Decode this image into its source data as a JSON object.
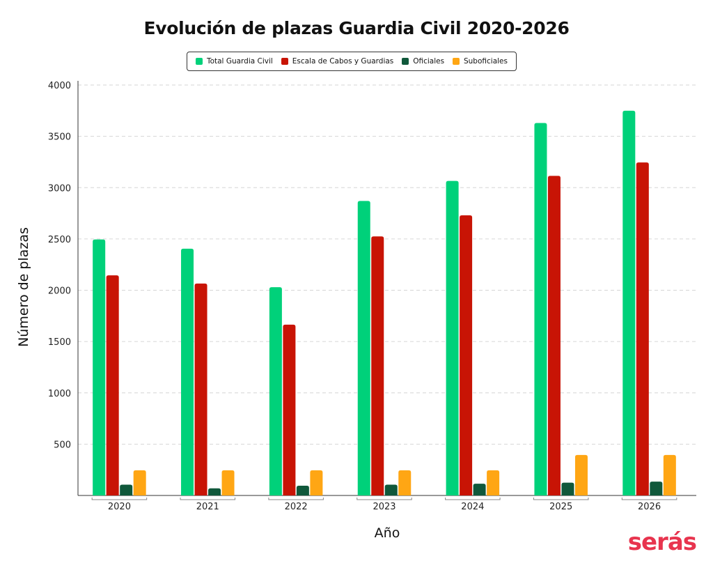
{
  "brand": "serás",
  "chart_data": {
    "type": "bar",
    "title": "Evolución de plazas Guardia Civil 2020-2026",
    "xlabel": "Año",
    "ylabel": "Número de plazas",
    "categories": [
      "2020",
      "2021",
      "2022",
      "2023",
      "2024",
      "2025",
      "2026"
    ],
    "ylim": [
      0,
      4000
    ],
    "yticks": [
      500,
      1000,
      1500,
      2000,
      2500,
      3000,
      3500,
      4000
    ],
    "grid": true,
    "legend_position": "top-center",
    "series": [
      {
        "name": "Total Guardia Civil",
        "color": "#00d17a",
        "values": [
          2495,
          2405,
          2030,
          2870,
          3065,
          3630,
          3750
        ]
      },
      {
        "name": "Escala de Cabos y Guardias",
        "color": "#c81405",
        "values": [
          2145,
          2065,
          1665,
          2525,
          2730,
          3115,
          3245
        ]
      },
      {
        "name": "Oficiales",
        "color": "#10583b",
        "values": [
          105,
          70,
          95,
          105,
          115,
          125,
          135
        ]
      },
      {
        "name": "Suboficiales",
        "color": "#ffa614",
        "values": [
          245,
          245,
          245,
          245,
          245,
          395,
          395
        ]
      }
    ]
  }
}
